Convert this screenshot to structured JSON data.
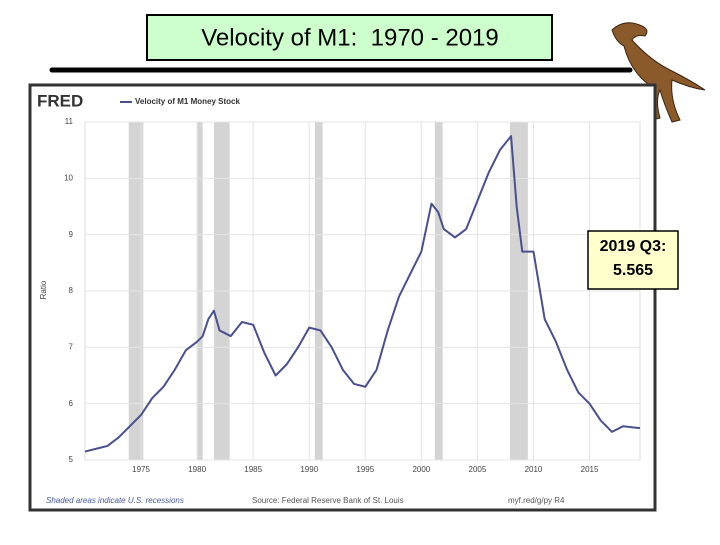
{
  "slide_title": "Velocity of M1:  1970 - 2019",
  "annotation": [
    "2019 Q3:",
    "5.565"
  ],
  "chart_data": {
    "type": "line",
    "brand": "FRED",
    "y_label": "Ratio",
    "footer_left": "Shaded areas indicate U.S. recessions",
    "footer_source": "Source: Federal Reserve Bank of St. Louis",
    "footer_link": "myf.red/g/py R4",
    "x": [
      1970,
      1971,
      1972,
      1973,
      1974,
      1975,
      1976,
      1977,
      1978,
      1979,
      1980,
      1980.5,
      1981,
      1981.5,
      1982,
      1983,
      1984,
      1985,
      1986,
      1987,
      1988,
      1989,
      1990,
      1991,
      1992,
      1993,
      1994,
      1995,
      1996,
      1997,
      1998,
      1999,
      2000,
      2000.9,
      2001.5,
      2002,
      2003,
      2004,
      2005,
      2006,
      2007,
      2008,
      2008.5,
      2009,
      2010,
      2011,
      2012,
      2013,
      2014,
      2015,
      2016,
      2017,
      2018,
      2019.5
    ],
    "series": [
      {
        "name": "Velocity of M1 Money Stock",
        "color": "#4a4f8e",
        "values": [
          5.15,
          5.2,
          5.25,
          5.4,
          5.6,
          5.8,
          6.1,
          6.3,
          6.6,
          6.95,
          7.1,
          7.2,
          7.5,
          7.65,
          7.3,
          7.2,
          7.45,
          7.4,
          6.9,
          6.5,
          6.7,
          7.0,
          7.35,
          7.3,
          7.0,
          6.6,
          6.35,
          6.3,
          6.6,
          7.3,
          7.9,
          8.3,
          8.7,
          9.55,
          9.4,
          9.1,
          8.95,
          9.1,
          9.6,
          10.1,
          10.5,
          10.75,
          9.5,
          8.7,
          8.7,
          7.5,
          7.1,
          6.6,
          6.2,
          6.0,
          5.7,
          5.5,
          5.6,
          5.565
        ]
      }
    ],
    "recessions": [
      [
        1973.9,
        1975.2
      ],
      [
        1980.0,
        1980.5
      ],
      [
        1981.5,
        1982.9
      ],
      [
        1990.5,
        1991.2
      ],
      [
        2001.2,
        2001.9
      ],
      [
        2007.9,
        2009.5
      ]
    ],
    "recession_color": "#d4d4d4",
    "xlim": [
      1970,
      2019.5
    ],
    "ylim": [
      5,
      11
    ],
    "xticks": [
      1975,
      1980,
      1985,
      1990,
      1995,
      2000,
      2005,
      2010,
      2015
    ],
    "yticks": [
      5,
      6,
      7,
      8,
      9,
      10,
      11
    ],
    "grid": true
  }
}
